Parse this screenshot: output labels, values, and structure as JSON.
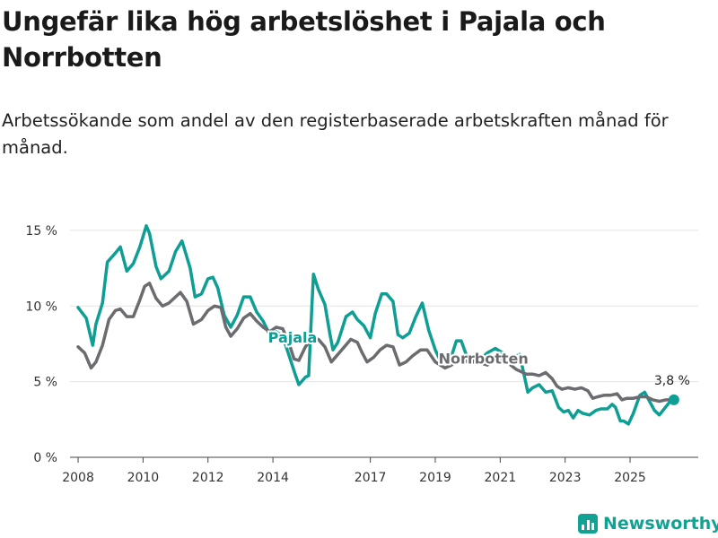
{
  "header": {
    "title": "Ungefär lika hög arbetslöshet i Pajala och Norrbotten",
    "subtitle": "Arbetssökande som andel av den registerbaserade arbetskraften månad för månad."
  },
  "colors": {
    "pajala": "#0e9e94",
    "norrbotten": "#6b6b70",
    "grid": "#e4e4e4",
    "axis": "#444444"
  },
  "chart_data": {
    "type": "line",
    "title": "Ungefär lika hög arbetslöshet i Pajala och Norrbotten",
    "ylabel": "",
    "xlabel": "",
    "ylim": [
      0,
      16
    ],
    "xlim": [
      2007.75,
      2027.1
    ],
    "y_ticks": [
      0,
      5,
      10,
      15
    ],
    "y_tick_labels": [
      "0 %",
      "5 %",
      "10 %",
      "15 %"
    ],
    "x_ticks": [
      2008,
      2010,
      2012,
      2014,
      2017,
      2019,
      2021,
      2023,
      2025
    ],
    "x_tick_labels": [
      "2008",
      "2010",
      "2012",
      "2014",
      "2017",
      "2019",
      "2021",
      "2023",
      "2025"
    ],
    "series": [
      {
        "name": "Pajala",
        "label": "Pajala",
        "points": [
          [
            2008.0,
            9.9
          ],
          [
            2008.25,
            9.2
          ],
          [
            2008.45,
            7.4
          ],
          [
            2008.55,
            8.8
          ],
          [
            2008.75,
            10.2
          ],
          [
            2008.9,
            12.9
          ],
          [
            2009.15,
            13.5
          ],
          [
            2009.3,
            13.9
          ],
          [
            2009.5,
            12.3
          ],
          [
            2009.7,
            12.8
          ],
          [
            2009.9,
            13.9
          ],
          [
            2010.1,
            15.3
          ],
          [
            2010.2,
            14.8
          ],
          [
            2010.4,
            12.6
          ],
          [
            2010.55,
            11.8
          ],
          [
            2010.8,
            12.3
          ],
          [
            2011.0,
            13.6
          ],
          [
            2011.2,
            14.3
          ],
          [
            2011.45,
            12.5
          ],
          [
            2011.6,
            10.6
          ],
          [
            2011.8,
            10.8
          ],
          [
            2012.0,
            11.8
          ],
          [
            2012.15,
            11.9
          ],
          [
            2012.3,
            11.2
          ],
          [
            2012.5,
            9.4
          ],
          [
            2012.7,
            8.6
          ],
          [
            2012.9,
            9.4
          ],
          [
            2013.1,
            10.6
          ],
          [
            2013.3,
            10.6
          ],
          [
            2013.5,
            9.6
          ],
          [
            2013.7,
            9.0
          ],
          [
            2013.9,
            8.1
          ],
          [
            2014.1,
            8.3
          ],
          [
            2014.3,
            8.0
          ],
          [
            2014.5,
            6.7
          ],
          [
            2014.7,
            5.4
          ],
          [
            2014.8,
            4.8
          ],
          [
            2015.0,
            5.3
          ],
          [
            2015.1,
            5.4
          ],
          [
            2015.2,
            10.0
          ],
          [
            2015.25,
            12.1
          ],
          [
            2015.4,
            11.1
          ],
          [
            2015.6,
            10.1
          ],
          [
            2015.75,
            8.2
          ],
          [
            2015.85,
            7.1
          ],
          [
            2016.0,
            7.6
          ],
          [
            2016.25,
            9.3
          ],
          [
            2016.45,
            9.6
          ],
          [
            2016.6,
            9.1
          ],
          [
            2016.8,
            8.7
          ],
          [
            2017.0,
            7.9
          ],
          [
            2017.15,
            9.5
          ],
          [
            2017.35,
            10.8
          ],
          [
            2017.5,
            10.8
          ],
          [
            2017.7,
            10.3
          ],
          [
            2017.85,
            8.1
          ],
          [
            2018.0,
            7.9
          ],
          [
            2018.2,
            8.2
          ],
          [
            2018.4,
            9.3
          ],
          [
            2018.6,
            10.2
          ],
          [
            2018.8,
            8.4
          ],
          [
            2019.0,
            7.1
          ],
          [
            2019.2,
            6.2
          ],
          [
            2019.4,
            6.3
          ],
          [
            2019.5,
            6.7
          ],
          [
            2019.65,
            7.7
          ],
          [
            2019.8,
            7.7
          ],
          [
            2020.0,
            6.5
          ],
          [
            2020.3,
            6.3
          ],
          [
            2020.6,
            6.9
          ],
          [
            2020.85,
            7.2
          ],
          [
            2021.0,
            7.0
          ],
          [
            2021.15,
            6.8
          ],
          [
            2021.4,
            6.6
          ],
          [
            2021.6,
            6.8
          ],
          [
            2021.75,
            5.3
          ],
          [
            2021.85,
            4.3
          ],
          [
            2022.0,
            4.6
          ],
          [
            2022.2,
            4.8
          ],
          [
            2022.4,
            4.3
          ],
          [
            2022.6,
            4.4
          ],
          [
            2022.8,
            3.3
          ],
          [
            2022.95,
            3.0
          ],
          [
            2023.1,
            3.1
          ],
          [
            2023.25,
            2.6
          ],
          [
            2023.4,
            3.1
          ],
          [
            2023.55,
            2.9
          ],
          [
            2023.75,
            2.8
          ],
          [
            2023.95,
            3.1
          ],
          [
            2024.1,
            3.2
          ],
          [
            2024.3,
            3.2
          ],
          [
            2024.45,
            3.5
          ],
          [
            2024.55,
            3.3
          ],
          [
            2024.7,
            2.4
          ],
          [
            2024.8,
            2.4
          ],
          [
            2024.95,
            2.2
          ],
          [
            2025.1,
            2.9
          ],
          [
            2025.3,
            4.1
          ],
          [
            2025.45,
            4.3
          ],
          [
            2025.6,
            3.7
          ],
          [
            2025.75,
            3.1
          ],
          [
            2025.9,
            2.8
          ],
          [
            2026.05,
            3.2
          ],
          [
            2026.2,
            3.6
          ],
          [
            2026.35,
            3.8
          ]
        ]
      },
      {
        "name": "Norrbotten",
        "label": "Norrbotten",
        "points": [
          [
            2008.0,
            7.3
          ],
          [
            2008.2,
            6.9
          ],
          [
            2008.4,
            5.9
          ],
          [
            2008.55,
            6.3
          ],
          [
            2008.75,
            7.4
          ],
          [
            2008.95,
            9.1
          ],
          [
            2009.15,
            9.7
          ],
          [
            2009.3,
            9.8
          ],
          [
            2009.5,
            9.3
          ],
          [
            2009.7,
            9.3
          ],
          [
            2009.9,
            10.4
          ],
          [
            2010.05,
            11.3
          ],
          [
            2010.2,
            11.5
          ],
          [
            2010.4,
            10.5
          ],
          [
            2010.6,
            10.0
          ],
          [
            2010.8,
            10.2
          ],
          [
            2011.0,
            10.6
          ],
          [
            2011.15,
            10.9
          ],
          [
            2011.35,
            10.3
          ],
          [
            2011.55,
            8.8
          ],
          [
            2011.8,
            9.1
          ],
          [
            2012.0,
            9.7
          ],
          [
            2012.2,
            10.0
          ],
          [
            2012.4,
            9.9
          ],
          [
            2012.55,
            8.6
          ],
          [
            2012.7,
            8.0
          ],
          [
            2012.9,
            8.5
          ],
          [
            2013.1,
            9.2
          ],
          [
            2013.3,
            9.5
          ],
          [
            2013.5,
            9.0
          ],
          [
            2013.7,
            8.6
          ],
          [
            2013.9,
            8.3
          ],
          [
            2014.1,
            8.6
          ],
          [
            2014.3,
            8.5
          ],
          [
            2014.5,
            7.5
          ],
          [
            2014.65,
            6.5
          ],
          [
            2014.8,
            6.4
          ],
          [
            2015.0,
            7.3
          ],
          [
            2015.2,
            7.9
          ],
          [
            2015.4,
            7.8
          ],
          [
            2015.6,
            7.3
          ],
          [
            2015.8,
            6.3
          ],
          [
            2016.0,
            6.8
          ],
          [
            2016.2,
            7.3
          ],
          [
            2016.4,
            7.8
          ],
          [
            2016.6,
            7.6
          ],
          [
            2016.75,
            6.9
          ],
          [
            2016.9,
            6.3
          ],
          [
            2017.1,
            6.6
          ],
          [
            2017.3,
            7.1
          ],
          [
            2017.5,
            7.4
          ],
          [
            2017.7,
            7.3
          ],
          [
            2017.9,
            6.1
          ],
          [
            2018.1,
            6.3
          ],
          [
            2018.3,
            6.7
          ],
          [
            2018.55,
            7.1
          ],
          [
            2018.75,
            7.1
          ],
          [
            2019.0,
            6.3
          ],
          [
            2019.3,
            5.9
          ],
          [
            2019.5,
            6.1
          ],
          [
            2019.75,
            6.6
          ],
          [
            2020.0,
            6.3
          ],
          [
            2020.3,
            6.3
          ],
          [
            2020.6,
            6.1
          ],
          [
            2020.9,
            6.5
          ],
          [
            2021.2,
            6.3
          ],
          [
            2021.5,
            5.8
          ],
          [
            2021.8,
            5.5
          ],
          [
            2022.0,
            5.5
          ],
          [
            2022.2,
            5.4
          ],
          [
            2022.4,
            5.6
          ],
          [
            2022.6,
            5.2
          ],
          [
            2022.75,
            4.7
          ],
          [
            2022.9,
            4.5
          ],
          [
            2023.1,
            4.6
          ],
          [
            2023.3,
            4.5
          ],
          [
            2023.5,
            4.6
          ],
          [
            2023.7,
            4.4
          ],
          [
            2023.85,
            3.9
          ],
          [
            2024.0,
            4.0
          ],
          [
            2024.2,
            4.1
          ],
          [
            2024.4,
            4.1
          ],
          [
            2024.6,
            4.2
          ],
          [
            2024.75,
            3.8
          ],
          [
            2024.9,
            3.9
          ],
          [
            2025.1,
            3.9
          ],
          [
            2025.3,
            4.0
          ],
          [
            2025.5,
            4.0
          ],
          [
            2025.7,
            3.8
          ],
          [
            2025.9,
            3.7
          ],
          [
            2026.1,
            3.8
          ],
          [
            2026.35,
            3.8
          ]
        ]
      }
    ],
    "annotations": [
      {
        "text": "Pajala",
        "series": "Pajala",
        "x": 2013.85,
        "y": 7.6
      },
      {
        "text": "Norrbotten",
        "series": "Norrbotten",
        "x": 2019.1,
        "y": 6.2
      }
    ],
    "end_label": {
      "text": "3,8 %",
      "x": 2026.35,
      "y": 3.8
    }
  },
  "footer": {
    "brand": "Newsworthy",
    "logo_icon": "bar-chart-logo-icon"
  }
}
